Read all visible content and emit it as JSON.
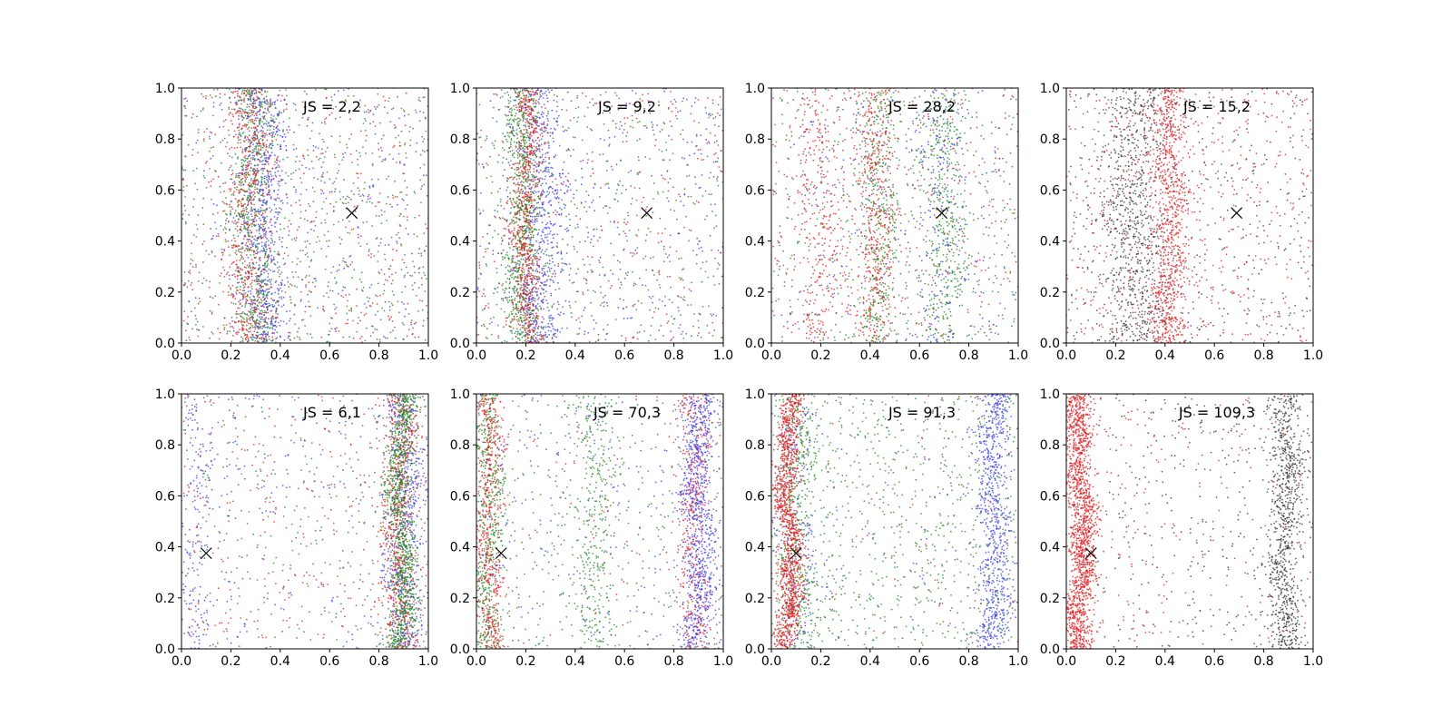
{
  "colors": {
    "red": "#e41a1c",
    "green": "#1a8a1a",
    "blue": "#3a3aef",
    "black": "#333333",
    "axes": "#000000",
    "marker": "#000000"
  },
  "chart_data": [
    {
      "type": "scatter",
      "row": 0,
      "col": 0,
      "annotation": "JS = 2,2",
      "xlim": [
        0,
        1
      ],
      "ylim": [
        0,
        1
      ],
      "xticks": [
        "0.0",
        "0.2",
        "0.4",
        "0.6",
        "0.8",
        "1.0"
      ],
      "yticks": [
        "0.0",
        "0.2",
        "0.4",
        "0.6",
        "0.8",
        "1.0"
      ],
      "marker_point": {
        "x": 0.69,
        "y": 0.51
      },
      "series": [
        {
          "color": "green",
          "bands": [
            {
              "center": 0.29,
              "width": 0.045,
              "weight": 0.6
            }
          ],
          "background": 0.4,
          "count": 1100
        },
        {
          "color": "blue",
          "bands": [
            {
              "center": 0.33,
              "width": 0.05,
              "weight": 0.6
            }
          ],
          "background": 0.4,
          "count": 1100
        },
        {
          "color": "red",
          "bands": [
            {
              "center": 0.27,
              "width": 0.05,
              "weight": 0.55
            }
          ],
          "background": 0.45,
          "count": 1000
        }
      ]
    },
    {
      "type": "scatter",
      "row": 0,
      "col": 1,
      "annotation": "JS = 9,2",
      "xlim": [
        0,
        1
      ],
      "ylim": [
        0,
        1
      ],
      "xticks": [
        "0.0",
        "0.2",
        "0.4",
        "0.6",
        "0.8",
        "1.0"
      ],
      "yticks": [
        "0.0",
        "0.2",
        "0.4",
        "0.6",
        "0.8",
        "1.0"
      ],
      "marker_point": {
        "x": 0.69,
        "y": 0.51
      },
      "series": [
        {
          "color": "blue",
          "bands": [
            {
              "center": 0.26,
              "width": 0.05,
              "weight": 0.55
            }
          ],
          "background": 0.45,
          "count": 1100
        },
        {
          "color": "green",
          "bands": [
            {
              "center": 0.19,
              "width": 0.035,
              "weight": 0.7
            }
          ],
          "background": 0.3,
          "count": 1100
        },
        {
          "color": "red",
          "bands": [
            {
              "center": 0.2,
              "width": 0.03,
              "weight": 0.65
            }
          ],
          "background": 0.35,
          "count": 1000
        }
      ]
    },
    {
      "type": "scatter",
      "row": 0,
      "col": 2,
      "annotation": "JS = 28,2",
      "xlim": [
        0,
        1
      ],
      "ylim": [
        0,
        1
      ],
      "xticks": [
        "0.0",
        "0.2",
        "0.4",
        "0.6",
        "0.8",
        "1.0"
      ],
      "yticks": [
        "0.0",
        "0.2",
        "0.4",
        "0.6",
        "0.8",
        "1.0"
      ],
      "marker_point": {
        "x": 0.69,
        "y": 0.51
      },
      "series": [
        {
          "color": "green",
          "bands": [
            {
              "center": 0.44,
              "width": 0.04,
              "weight": 0.35
            },
            {
              "center": 0.7,
              "width": 0.05,
              "weight": 0.35
            }
          ],
          "background": 0.3,
          "count": 1100
        },
        {
          "color": "red",
          "bands": [
            {
              "center": 0.42,
              "width": 0.04,
              "weight": 0.4
            },
            {
              "center": 0.2,
              "width": 0.05,
              "weight": 0.25
            }
          ],
          "background": 0.35,
          "count": 1100
        },
        {
          "color": "blue",
          "bands": [
            {
              "center": 0.68,
              "width": 0.06,
              "weight": 0.3
            }
          ],
          "background": 0.7,
          "count": 500
        }
      ]
    },
    {
      "type": "scatter",
      "row": 0,
      "col": 3,
      "annotation": "JS = 15,2",
      "xlim": [
        0,
        1
      ],
      "ylim": [
        0,
        1
      ],
      "xticks": [
        "0.0",
        "0.2",
        "0.4",
        "0.6",
        "0.8",
        "1.0"
      ],
      "yticks": [
        "0.0",
        "0.2",
        "0.4",
        "0.6",
        "0.8",
        "1.0"
      ],
      "marker_point": {
        "x": 0.69,
        "y": 0.51
      },
      "series": [
        {
          "color": "black",
          "bands": [
            {
              "center": 0.27,
              "width": 0.07,
              "weight": 0.65
            }
          ],
          "background": 0.35,
          "count": 1200
        },
        {
          "color": "red",
          "bands": [
            {
              "center": 0.42,
              "width": 0.04,
              "weight": 0.6
            }
          ],
          "background": 0.4,
          "count": 1400
        }
      ]
    },
    {
      "type": "scatter",
      "row": 1,
      "col": 0,
      "annotation": "JS = 6,1",
      "xlim": [
        0,
        1
      ],
      "ylim": [
        0,
        1
      ],
      "xticks": [
        "0.0",
        "0.2",
        "0.4",
        "0.6",
        "0.8",
        "1.0"
      ],
      "yticks": [
        "0.0",
        "0.2",
        "0.4",
        "0.6",
        "0.8",
        "1.0"
      ],
      "marker_point": {
        "x": 0.1,
        "y": 0.375
      },
      "series": [
        {
          "color": "blue",
          "bands": [
            {
              "center": 0.9,
              "width": 0.04,
              "weight": 0.55
            },
            {
              "center": 0.05,
              "width": 0.04,
              "weight": 0.15
            }
          ],
          "background": 0.3,
          "count": 1100
        },
        {
          "color": "red",
          "bands": [
            {
              "center": 0.88,
              "width": 0.035,
              "weight": 0.65
            }
          ],
          "background": 0.35,
          "count": 1000
        },
        {
          "color": "green",
          "bands": [
            {
              "center": 0.89,
              "width": 0.03,
              "weight": 0.9
            }
          ],
          "background": 0.1,
          "count": 1100
        }
      ]
    },
    {
      "type": "scatter",
      "row": 1,
      "col": 1,
      "annotation": "JS = 70,3",
      "xlim": [
        0,
        1
      ],
      "ylim": [
        0,
        1
      ],
      "xticks": [
        "0.0",
        "0.2",
        "0.4",
        "0.6",
        "0.8",
        "1.0"
      ],
      "yticks": [
        "0.0",
        "0.2",
        "0.4",
        "0.6",
        "0.8",
        "1.0"
      ],
      "marker_point": {
        "x": 0.1,
        "y": 0.375
      },
      "series": [
        {
          "color": "green",
          "bands": [
            {
              "center": 0.05,
              "width": 0.03,
              "weight": 0.45
            },
            {
              "center": 0.48,
              "width": 0.04,
              "weight": 0.3
            }
          ],
          "background": 0.25,
          "count": 1100
        },
        {
          "color": "red",
          "bands": [
            {
              "center": 0.05,
              "width": 0.025,
              "weight": 0.55
            },
            {
              "center": 0.88,
              "width": 0.035,
              "weight": 0.35
            }
          ],
          "background": 0.1,
          "count": 1100
        },
        {
          "color": "blue",
          "bands": [
            {
              "center": 0.9,
              "width": 0.035,
              "weight": 0.75
            }
          ],
          "background": 0.25,
          "count": 1100
        }
      ]
    },
    {
      "type": "scatter",
      "row": 1,
      "col": 2,
      "annotation": "JS = 91,3",
      "xlim": [
        0,
        1
      ],
      "ylim": [
        0,
        1
      ],
      "xticks": [
        "0.0",
        "0.2",
        "0.4",
        "0.6",
        "0.8",
        "1.0"
      ],
      "yticks": [
        "0.0",
        "0.2",
        "0.4",
        "0.6",
        "0.8",
        "1.0"
      ],
      "marker_point": {
        "x": 0.1,
        "y": 0.375
      },
      "series": [
        {
          "color": "green",
          "bands": [
            {
              "center": 0.1,
              "width": 0.04,
              "weight": 0.35
            }
          ],
          "background": 0.65,
          "count": 1200
        },
        {
          "color": "blue",
          "bands": [
            {
              "center": 0.9,
              "width": 0.035,
              "weight": 0.7
            },
            {
              "center": 0.1,
              "width": 0.04,
              "weight": 0.15
            }
          ],
          "background": 0.15,
          "count": 1100
        },
        {
          "color": "red",
          "bands": [
            {
              "center": 0.07,
              "width": 0.025,
              "weight": 0.92
            }
          ],
          "background": 0.08,
          "count": 1300
        }
      ]
    },
    {
      "type": "scatter",
      "row": 1,
      "col": 3,
      "annotation": "JS = 109,3",
      "xlim": [
        0,
        1
      ],
      "ylim": [
        0,
        1
      ],
      "xticks": [
        "0.0",
        "0.2",
        "0.4",
        "0.6",
        "0.8",
        "1.0"
      ],
      "yticks": [
        "0.0",
        "0.2",
        "0.4",
        "0.6",
        "0.8",
        "1.0"
      ],
      "marker_point": {
        "x": 0.1,
        "y": 0.375
      },
      "series": [
        {
          "color": "black",
          "bands": [
            {
              "center": 0.89,
              "width": 0.035,
              "weight": 0.7
            }
          ],
          "background": 0.3,
          "count": 1200
        },
        {
          "color": "red",
          "bands": [
            {
              "center": 0.06,
              "width": 0.028,
              "weight": 0.85
            }
          ],
          "background": 0.15,
          "count": 1700
        }
      ]
    }
  ]
}
